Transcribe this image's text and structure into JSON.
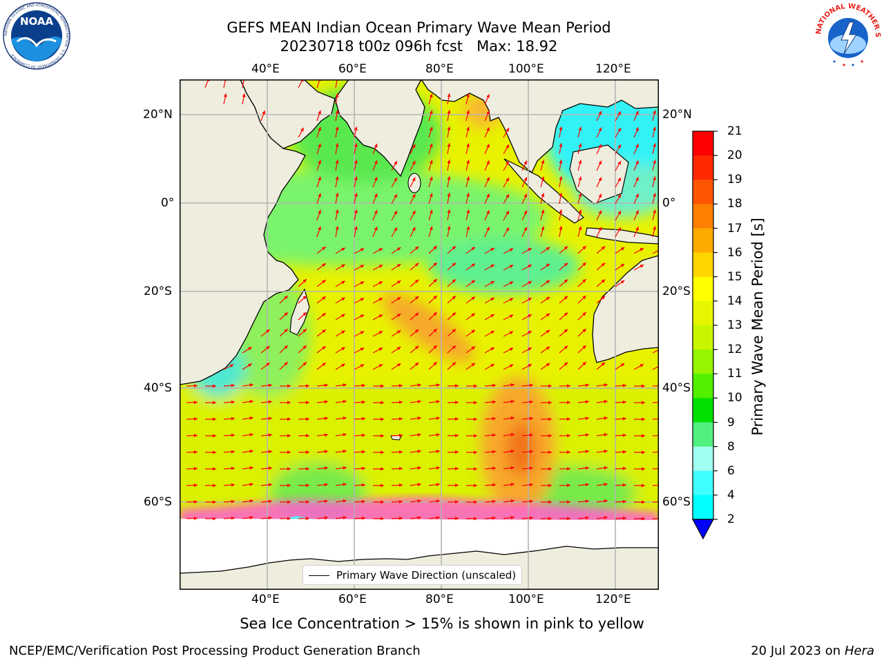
{
  "title": {
    "line1": "GEFS MEAN Indian Ocean Primary Wave Mean Period",
    "line2": "20230718 t00z 096h fcst   Max: 18.92"
  },
  "logos": {
    "left": "NOAA",
    "left_ring_text": "NATIONAL OCEANIC AND ATMOSPHERIC ADMINISTRATION · U.S. DEPARTMENT OF COMMERCE",
    "right_ring_text": "NATIONAL WEATHER SERVICE"
  },
  "map": {
    "lon_labels": [
      "40°E",
      "60°E",
      "80°E",
      "100°E",
      "120°E"
    ],
    "lat_labels_left": [
      "20°N",
      "0°",
      "20°S",
      "40°S",
      "60°S"
    ],
    "lat_labels_right": [
      "20°N",
      "0°",
      "20°S",
      "40°S",
      "60°S"
    ],
    "legend": "Primary Wave Direction (unscaled)",
    "colors": {
      "land": "#efedde",
      "arrow": "#ff0000",
      "grid": "#b4b4b4"
    }
  },
  "colorbar": {
    "label": "Primary Wave Mean Period [s]",
    "ticks": [
      "21",
      "20",
      "19",
      "18",
      "17",
      "16",
      "15",
      "14",
      "13",
      "12",
      "11",
      "10",
      "9",
      "8",
      "6",
      "4",
      "2"
    ],
    "colors": [
      "#ff0000",
      "#ff2a00",
      "#ff5500",
      "#ff8000",
      "#ffaa00",
      "#ffd500",
      "#ffff00",
      "#e6f500",
      "#c8f500",
      "#96f500",
      "#50f000",
      "#00e000",
      "#50f080",
      "#a0fff0",
      "#40ffff",
      "#00ffff",
      "#00c8ff",
      "#0064ff"
    ]
  },
  "subtitle": "Sea Ice Concentration > 15% is shown in pink to yellow",
  "footer": {
    "left": "NCEP/EMC/Verification Post Processing Product Generation Branch",
    "right_date": "20 Jul 2023 on ",
    "right_machine": "Hera"
  }
}
